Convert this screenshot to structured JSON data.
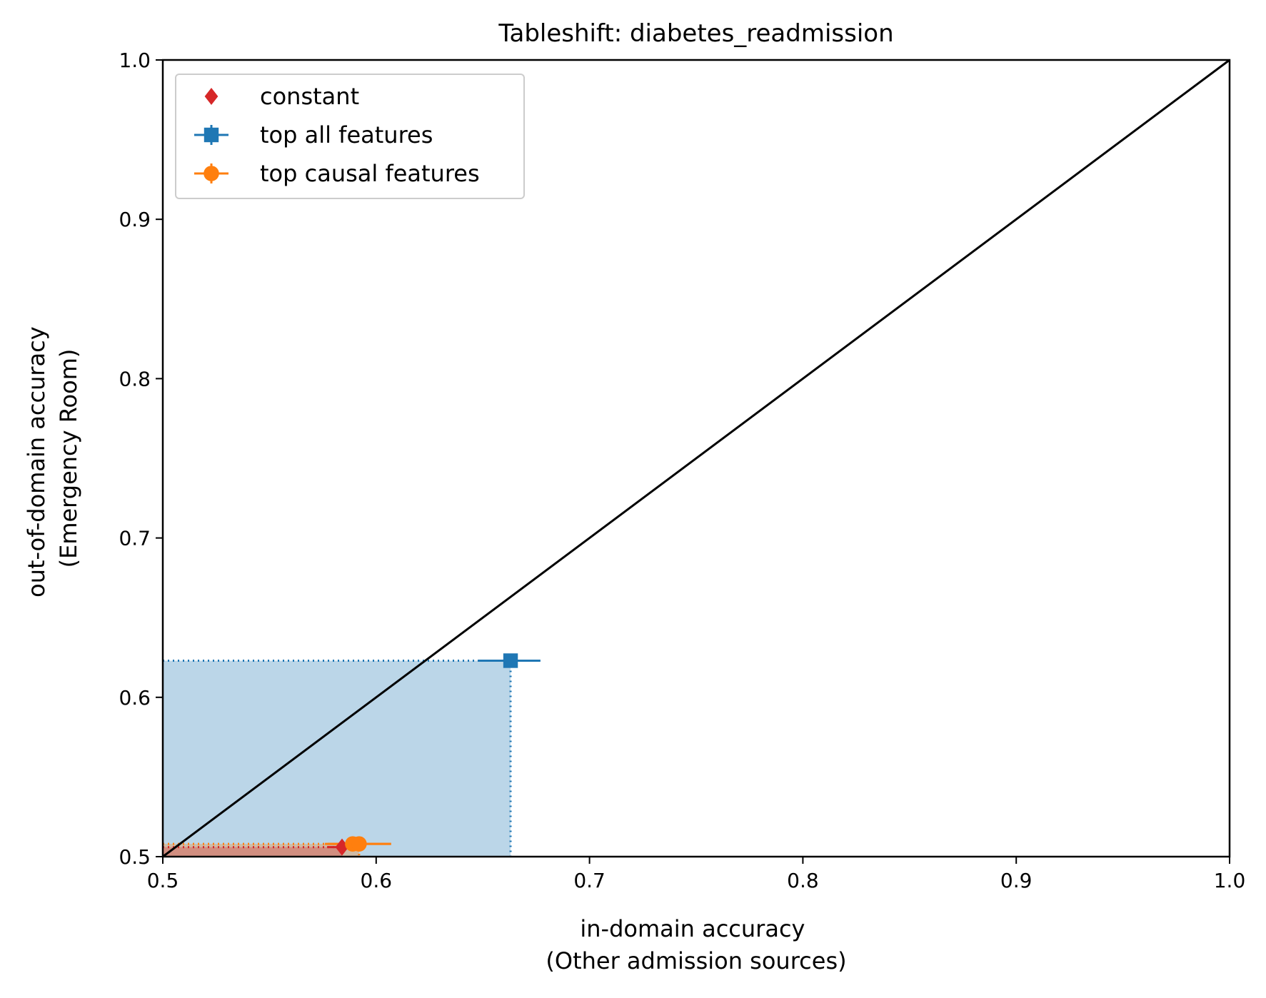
{
  "chart_data": {
    "type": "scatter",
    "title": "Tableshift: diabetes_readmission",
    "xlabel": [
      "in-domain accuracy",
      "(Other admission sources)"
    ],
    "ylabel": [
      "out-of-domain accuracy",
      "(Emergency Room)"
    ],
    "xlim": [
      0.5,
      1.0
    ],
    "ylim": [
      0.5,
      1.0
    ],
    "xticks": [
      "0.5",
      "0.6",
      "0.7",
      "0.8",
      "0.9",
      "1.0"
    ],
    "yticks": [
      "0.5",
      "0.6",
      "0.7",
      "0.8",
      "0.9",
      "1.0"
    ],
    "grid": false,
    "legend_position": "top-left",
    "diagonal": {
      "from": [
        0.5,
        0.5
      ],
      "to": [
        1.0,
        1.0
      ],
      "color": "#000000"
    },
    "series": [
      {
        "name": "constant",
        "marker": "diamond",
        "color": "#d62728",
        "points": [
          {
            "x": 0.584,
            "y": 0.506
          }
        ],
        "xerr": [
          [
            0.577,
            0.591
          ]
        ],
        "yerr": [
          [
            0.504,
            0.508
          ]
        ],
        "region": {
          "x": 0.584,
          "y": 0.506
        }
      },
      {
        "name": "top all features",
        "marker": "square",
        "color": "#1f77b4",
        "points": [
          {
            "x": 0.663,
            "y": 0.623
          }
        ],
        "xerr": [
          [
            0.648,
            0.677
          ]
        ],
        "yerr": [
          [
            0.62,
            0.626
          ]
        ],
        "region": {
          "x": 0.663,
          "y": 0.623
        }
      },
      {
        "name": "top causal features",
        "marker": "circle",
        "color": "#ff7f0e",
        "points": [
          {
            "x": 0.589,
            "y": 0.508
          },
          {
            "x": 0.592,
            "y": 0.508
          }
        ],
        "xerr": [
          [
            0.576,
            0.607
          ],
          [
            0.578,
            0.607
          ]
        ],
        "yerr": [
          [
            0.505,
            0.511
          ],
          [
            0.505,
            0.511
          ]
        ],
        "region": {
          "x": 0.592,
          "y": 0.508
        }
      }
    ]
  }
}
